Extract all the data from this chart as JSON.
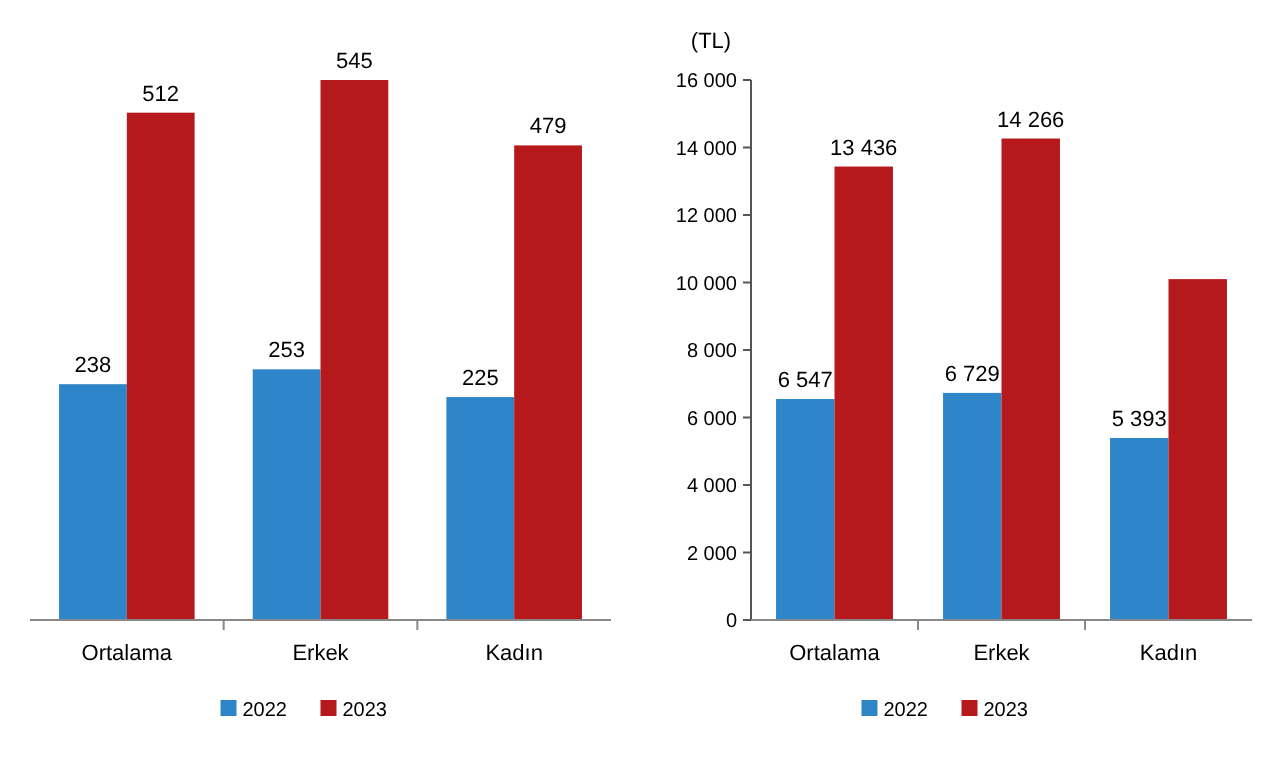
{
  "chart_data": [
    {
      "type": "bar",
      "categories": [
        "Ortalama",
        "Erkek",
        "Kadın"
      ],
      "data_labels": true,
      "legend": "bottom",
      "series": [
        {
          "name": "2022",
          "color": "#2e86c8",
          "values": [
            238,
            253,
            225
          ]
        },
        {
          "name": "2023",
          "color": "#b5191c",
          "values": [
            512,
            545,
            479
          ]
        }
      ]
    },
    {
      "type": "bar",
      "ylabel": "(TL)",
      "categories": [
        "Ortalama",
        "Erkek",
        "Kadın"
      ],
      "ylim": [
        0,
        16000
      ],
      "yticks": [
        {
          "value": 0,
          "label": "0"
        },
        {
          "value": 2000,
          "label": "2 000"
        },
        {
          "value": 4000,
          "label": "4 000"
        },
        {
          "value": 6000,
          "label": "6 000"
        },
        {
          "value": 8000,
          "label": "8 000"
        },
        {
          "value": 10000,
          "label": "10 000"
        },
        {
          "value": 12000,
          "label": "12 000"
        },
        {
          "value": 14000,
          "label": "14 000"
        },
        {
          "value": 16000,
          "label": "16 000"
        }
      ],
      "legend": "bottom",
      "series": [
        {
          "name": "2022",
          "color": "#2e86c8",
          "values": [
            6547,
            6729,
            5393
          ],
          "value_labels": [
            "6 547",
            "6 729",
            "5 393"
          ]
        },
        {
          "name": "2023",
          "color": "#b5191c",
          "values": [
            13436,
            14266,
            10100
          ],
          "value_labels": [
            "13 436",
            "14 266",
            null
          ]
        }
      ]
    }
  ]
}
